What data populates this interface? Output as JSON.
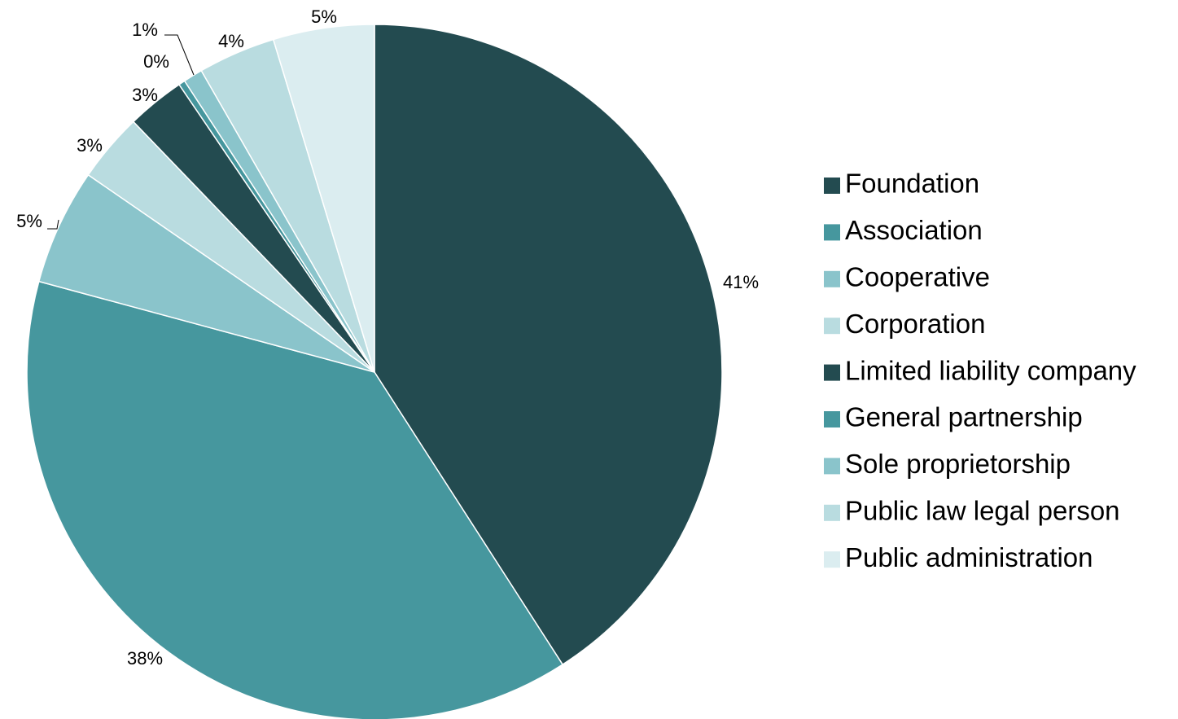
{
  "chart_data": {
    "type": "pie",
    "categories": [
      "Foundation",
      "Association",
      "Cooperative",
      "Corporation",
      "Limited liability company",
      "General partnership",
      "Sole proprietorship",
      "Public law legal person",
      "Public administration"
    ],
    "values": [
      40.9,
      38.3,
      5.4,
      3.2,
      2.7,
      0.3,
      0.9,
      3.6,
      4.7
    ],
    "value_labels": [
      "41%",
      "38%",
      "5%",
      "3%",
      "3%",
      "0%",
      "1%",
      "4%",
      "5%"
    ],
    "colors": [
      "#234b50",
      "#46979e",
      "#8ac4cb",
      "#b9dce0",
      "#234b50",
      "#46979e",
      "#8ac4cb",
      "#b9dce0",
      "#dbedf0"
    ],
    "legend": "right"
  }
}
